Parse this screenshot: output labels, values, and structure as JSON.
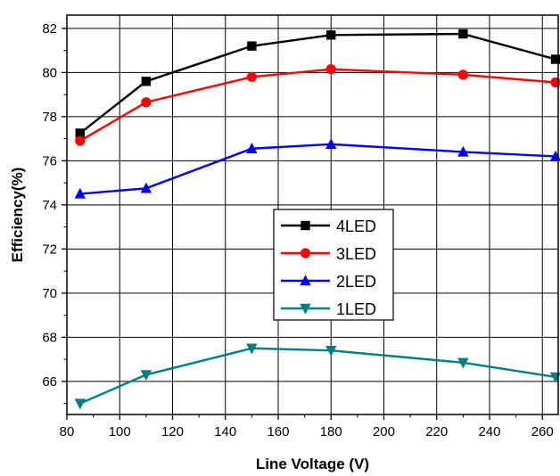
{
  "chart_data": {
    "type": "line",
    "title": "",
    "xlabel": "Line Voltage (V)",
    "ylabel": "Efficiency(%)",
    "xlim": [
      80,
      266
    ],
    "ylim": [
      64.5,
      82.6
    ],
    "xticks": [
      80,
      100,
      120,
      140,
      160,
      180,
      200,
      220,
      240,
      260
    ],
    "yticks": [
      66,
      68,
      70,
      72,
      74,
      76,
      78,
      80,
      82
    ],
    "grid": true,
    "legend_position": "center",
    "x": [
      85,
      110,
      150,
      180,
      230,
      265
    ],
    "series": [
      {
        "name": "4LED",
        "color": "#000000",
        "marker": "square",
        "values": [
          77.25,
          79.6,
          81.2,
          81.7,
          81.75,
          80.6
        ]
      },
      {
        "name": "3LED",
        "color": "#ff0000",
        "marker": "circle",
        "values": [
          76.9,
          78.65,
          79.8,
          80.15,
          79.9,
          79.55
        ]
      },
      {
        "name": "2LED",
        "color": "#0000ff",
        "marker": "triangle-up",
        "values": [
          74.5,
          74.75,
          76.55,
          76.75,
          76.4,
          76.2
        ]
      },
      {
        "name": "1LED",
        "color": "#008080",
        "marker": "triangle-down",
        "values": [
          65.0,
          66.3,
          67.5,
          67.4,
          66.85,
          66.2
        ]
      }
    ]
  }
}
